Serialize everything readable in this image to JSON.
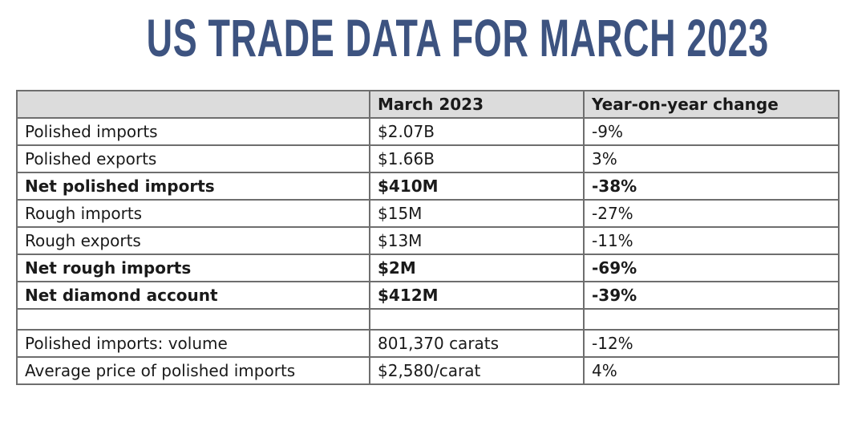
{
  "title": "US TRADE DATA FOR MARCH 2023",
  "table": {
    "headers": [
      "",
      "March 2023",
      "Year-on-year change"
    ],
    "rows": [
      {
        "label": "Polished imports",
        "value": "$2.07B",
        "change": "-9%",
        "bold": false
      },
      {
        "label": "Polished exports",
        "value": "$1.66B",
        "change": "3%",
        "bold": false
      },
      {
        "label": "Net polished imports",
        "value": "$410M",
        "change": "-38%",
        "bold": true
      },
      {
        "label": "Rough imports",
        "value": "$15M",
        "change": "-27%",
        "bold": false
      },
      {
        "label": "Rough exports",
        "value": "$13M",
        "change": "-11%",
        "bold": false
      },
      {
        "label": "Net rough imports",
        "value": "$2M",
        "change": "-69%",
        "bold": true
      },
      {
        "label": "Net diamond account",
        "value": "$412M",
        "change": "-39%",
        "bold": true
      },
      {
        "label": "",
        "value": "",
        "change": "",
        "bold": false
      },
      {
        "label": "Polished imports: volume",
        "value": "801,370 carats",
        "change": "-12%",
        "bold": false
      },
      {
        "label": "Average price of polished imports",
        "value": "$2,580/carat",
        "change": "4%",
        "bold": false
      }
    ]
  },
  "colors": {
    "title": "#3d5380",
    "header_bg": "#dcdcdc",
    "border": "#6e6e6e"
  }
}
